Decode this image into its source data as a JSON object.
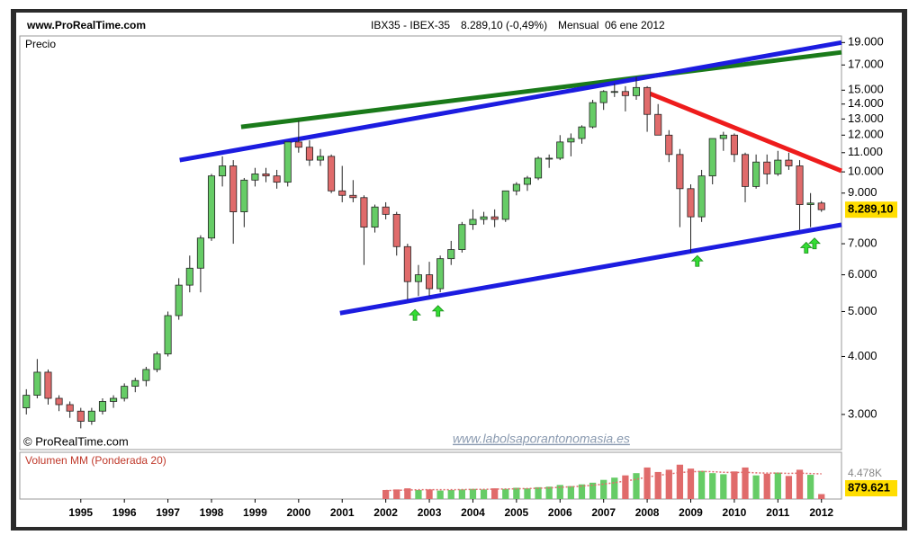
{
  "chart_data": {
    "type": "candlestick",
    "site": "www.ProRealTime.com",
    "title": "IBX35 - IBEX-35",
    "quote": "8.289,10 (-0,49%)",
    "period": "Mensual",
    "date": "06 ene 2012",
    "panel_label": "Precio",
    "copyright": "© ProRealTime.com",
    "watermark": "www.labolsaporantonomasia.es",
    "log_scale": true,
    "up_color": "#66cc66",
    "down_color": "#e06b6b",
    "xlim": [
      1993.6,
      2012.46
    ],
    "xticks": [
      1995,
      1996,
      1997,
      1998,
      1999,
      2000,
      2001,
      2002,
      2003,
      2004,
      2005,
      2006,
      2007,
      2008,
      2009,
      2010,
      2011,
      2012
    ],
    "ylim": [
      2520,
      19630
    ],
    "yticks": [
      {
        "value": 3000,
        "label": "3.000"
      },
      {
        "value": 4000,
        "label": "4.000"
      },
      {
        "value": 5000,
        "label": "5.000"
      },
      {
        "value": 6000,
        "label": "6.000"
      },
      {
        "value": 7000,
        "label": "7.000"
      },
      {
        "value": 9000,
        "label": "9.000"
      },
      {
        "value": 10000,
        "label": "10.000"
      },
      {
        "value": 11000,
        "label": "11.000"
      },
      {
        "value": 12000,
        "label": "12.000"
      },
      {
        "value": 13000,
        "label": "13.000"
      },
      {
        "value": 14000,
        "label": "14.000"
      },
      {
        "value": 15000,
        "label": "15.000"
      },
      {
        "value": 17000,
        "label": "17.000"
      },
      {
        "value": 19000,
        "label": "19.000"
      }
    ],
    "last_price_label": "8.289,10",
    "x": [
      1993.75,
      1994.0,
      1994.25,
      1994.5,
      1994.75,
      1995.0,
      1995.25,
      1995.5,
      1995.75,
      1996.0,
      1996.25,
      1996.5,
      1996.75,
      1997.0,
      1997.25,
      1997.5,
      1997.75,
      1998.0,
      1998.25,
      1998.5,
      1998.75,
      1999.0,
      1999.25,
      1999.5,
      1999.75,
      2000.0,
      2000.25,
      2000.5,
      2000.75,
      2001.0,
      2001.25,
      2001.5,
      2001.75,
      2002.0,
      2002.25,
      2002.5,
      2002.75,
      2003.0,
      2003.25,
      2003.5,
      2003.75,
      2004.0,
      2004.25,
      2004.5,
      2004.75,
      2005.0,
      2005.25,
      2005.5,
      2005.75,
      2006.0,
      2006.25,
      2006.5,
      2006.75,
      2007.0,
      2007.25,
      2007.5,
      2007.75,
      2008.0,
      2008.25,
      2008.5,
      2008.75,
      2009.0,
      2009.25,
      2009.5,
      2009.75,
      2010.0,
      2010.25,
      2010.5,
      2010.75,
      2011.0,
      2011.25,
      2011.5,
      2011.75,
      2012.0
    ],
    "open": [
      3100,
      3300,
      3700,
      3250,
      3150,
      3050,
      2900,
      3050,
      3200,
      3250,
      3450,
      3550,
      3750,
      4050,
      4900,
      5700,
      6200,
      7200,
      9800,
      10300,
      8200,
      9600,
      9900,
      9800,
      9500,
      11600,
      11300,
      10600,
      10800,
      9100,
      8900,
      8800,
      7600,
      8400,
      8100,
      6900,
      5800,
      6000,
      5600,
      6500,
      6800,
      7700,
      7900,
      8000,
      7900,
      9100,
      9400,
      9700,
      10700,
      10700,
      11600,
      11800,
      12500,
      14100,
      14900,
      14900,
      14600,
      15200,
      13300,
      12000,
      10900,
      9200,
      8000,
      9800,
      11800,
      12000,
      10900,
      9300,
      10500,
      9900,
      10600,
      10300,
      8500,
      8566
    ],
    "high": [
      3400,
      3950,
      3750,
      3300,
      3200,
      3100,
      3100,
      3250,
      3300,
      3500,
      3600,
      3800,
      4100,
      5000,
      5900,
      6600,
      7300,
      9900,
      10800,
      10600,
      9700,
      10200,
      10200,
      10100,
      11600,
      12900,
      11700,
      11200,
      10900,
      10300,
      9600,
      8900,
      8500,
      8600,
      8200,
      7000,
      6300,
      6400,
      6600,
      7100,
      7800,
      8300,
      8200,
      8300,
      9100,
      9500,
      9800,
      10800,
      10900,
      12000,
      12100,
      12600,
      14300,
      15000,
      15500,
      15300,
      16000,
      15300,
      14000,
      12300,
      11200,
      9400,
      10100,
      11800,
      12200,
      12100,
      11000,
      10900,
      10900,
      11100,
      11000,
      10600,
      9000,
      8650
    ],
    "low": [
      3000,
      3250,
      3150,
      3050,
      2950,
      2800,
      2850,
      3000,
      3100,
      3200,
      3350,
      3450,
      3700,
      4000,
      4800,
      5500,
      5500,
      7100,
      9300,
      7000,
      7600,
      9300,
      9500,
      9200,
      9300,
      11000,
      10300,
      10300,
      9000,
      8600,
      8600,
      6300,
      7400,
      7900,
      6600,
      5300,
      5400,
      5400,
      5500,
      6300,
      6700,
      7500,
      7700,
      7600,
      7800,
      8900,
      9100,
      9600,
      10200,
      10600,
      10800,
      11500,
      12400,
      13600,
      14500,
      13500,
      14300,
      12200,
      12000,
      10500,
      7600,
      6700,
      7800,
      9400,
      11100,
      10500,
      8600,
      9200,
      9400,
      9800,
      10100,
      7500,
      7600,
      8200
    ],
    "close": [
      3300,
      3700,
      3250,
      3150,
      3050,
      2900,
      3050,
      3200,
      3250,
      3450,
      3550,
      3750,
      4050,
      4900,
      5700,
      6200,
      7200,
      9800,
      10300,
      8200,
      9600,
      9900,
      9800,
      9500,
      11600,
      11300,
      10600,
      10800,
      9100,
      8900,
      8800,
      7600,
      8400,
      8100,
      6900,
      5800,
      6000,
      5600,
      6500,
      6800,
      7700,
      7900,
      8000,
      7900,
      9100,
      9400,
      9700,
      10700,
      10700,
      11600,
      11800,
      12500,
      14100,
      14900,
      14900,
      14600,
      15200,
      13300,
      12000,
      10900,
      9200,
      8000,
      9800,
      11800,
      12000,
      10900,
      9300,
      10500,
      9900,
      10600,
      10300,
      8500,
      8566,
      8289
    ],
    "trendlines": [
      {
        "color": "#1a7a1a",
        "x": [
          1998.68,
          2012.46
        ],
        "values": [
          12500,
          18100
        ]
      },
      {
        "color": "#1c1ce0",
        "x": [
          1997.27,
          2012.46
        ],
        "values": [
          10600,
          19000
        ]
      },
      {
        "color": "#1c1ce0",
        "x": [
          2000.95,
          2012.46
        ],
        "values": [
          4960,
          7690
        ]
      },
      {
        "color": "#ee1c1c",
        "x": [
          2008.06,
          2012.46
        ],
        "values": [
          14750,
          10050
        ]
      }
    ],
    "arrows": {
      "color": "#33dd33",
      "x": [
        2002.67,
        2003.2,
        2009.15,
        2011.65,
        2011.84
      ],
      "values": [
        5050,
        5150,
        6600,
        7050,
        7200
      ]
    },
    "volume": {
      "title": "Volumen MM (Ponderada 20)",
      "ylim": [
        0,
        8300000
      ],
      "ma_color": "#e06b6b",
      "x": [
        2002.0,
        2002.25,
        2002.5,
        2002.75,
        2003.0,
        2003.25,
        2003.5,
        2003.75,
        2004.0,
        2004.25,
        2004.5,
        2004.75,
        2005.0,
        2005.25,
        2005.5,
        2005.75,
        2006.0,
        2006.25,
        2006.5,
        2006.75,
        2007.0,
        2007.25,
        2007.5,
        2007.75,
        2008.0,
        2008.25,
        2008.5,
        2008.75,
        2009.0,
        2009.25,
        2009.5,
        2009.75,
        2010.0,
        2010.25,
        2010.5,
        2010.75,
        2011.0,
        2011.25,
        2011.5,
        2011.75,
        2012.0
      ],
      "values": [
        1600000,
        1700000,
        1900000,
        1600000,
        1700000,
        1500000,
        1600000,
        1700000,
        1800000,
        1700000,
        1900000,
        1800000,
        2000000,
        1900000,
        2100000,
        2200000,
        2500000,
        2300000,
        2600000,
        2900000,
        3400000,
        3800000,
        4200000,
        4600000,
        5600000,
        4800000,
        5200000,
        6100000,
        5400000,
        5000000,
        4600000,
        4400000,
        4900000,
        5600000,
        4200000,
        4500000,
        4700000,
        4100000,
        5200000,
        4300000,
        879621
      ],
      "ma": [
        1500000,
        1550000,
        1600000,
        1650000,
        1650000,
        1650000,
        1650000,
        1680000,
        1700000,
        1720000,
        1760000,
        1780000,
        1820000,
        1860000,
        1920000,
        1980000,
        2080000,
        2180000,
        2300000,
        2450000,
        2650000,
        2900000,
        3200000,
        3500000,
        3900000,
        4200000,
        4450000,
        4700000,
        4850000,
        4900000,
        4850000,
        4750000,
        4700000,
        4750000,
        4650000,
        4600000,
        4600000,
        4550000,
        4600000,
        4520000,
        4478000
      ],
      "ma_value_label": "4.478K",
      "last_value_label": "879.621"
    }
  }
}
